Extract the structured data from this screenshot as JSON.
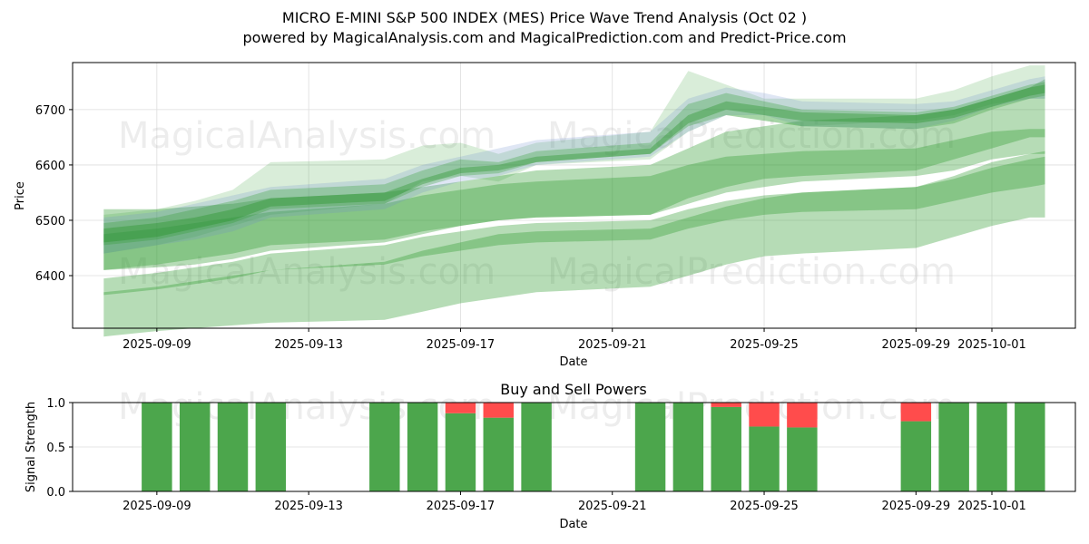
{
  "header": {
    "title": "MICRO E-MINI S&P 500 INDEX (MES) Price Wave Trend Analysis (Oct 02 )",
    "subtitle": "powered by MagicalAnalysis.com and MagicalPrediction.com and Predict-Price.com"
  },
  "watermarks": [
    "MagicalAnalysis.com",
    "MagicalPrediction.com"
  ],
  "chart_data": [
    {
      "type": "area",
      "title": "",
      "xlabel": "Date",
      "ylabel": "Price",
      "x_start_date": "2025-09-09",
      "xlim_days": [
        -2.22,
        24.2
      ],
      "ylim": [
        6305,
        6785
      ],
      "grid": true,
      "x_ticks": [
        {
          "day": 0,
          "label": "2025-09-09"
        },
        {
          "day": 4,
          "label": "2025-09-13"
        },
        {
          "day": 8,
          "label": "2025-09-17"
        },
        {
          "day": 12,
          "label": "2025-09-21"
        },
        {
          "day": 16,
          "label": "2025-09-25"
        },
        {
          "day": 20,
          "label": "2025-09-29"
        },
        {
          "day": 22,
          "label": "2025-10-01"
        }
      ],
      "y_ticks": [
        6400,
        6500,
        6600,
        6700
      ],
      "x_days": [
        -1.4,
        0,
        1,
        2,
        3,
        6,
        7,
        8,
        9,
        10,
        13,
        14,
        15,
        16,
        17,
        20,
        21,
        22,
        23,
        23.4
      ],
      "bands": [
        {
          "name": "wave-band-low-outer",
          "color": "#2e9b2e",
          "opacity": 0.35,
          "upper": [
            6370,
            6380,
            6390,
            6400,
            6410,
            6425,
            6445,
            6460,
            6475,
            6480,
            6485,
            6505,
            6525,
            6540,
            6550,
            6560,
            6580,
            6605,
            6620,
            6625
          ],
          "lower": [
            6290,
            6300,
            6305,
            6310,
            6315,
            6320,
            6335,
            6350,
            6360,
            6370,
            6380,
            6400,
            6420,
            6435,
            6440,
            6450,
            6470,
            6490,
            6505,
            6505
          ]
        },
        {
          "name": "wave-band-low-inner",
          "color": "#2e9b2e",
          "opacity": 0.35,
          "upper": [
            6395,
            6405,
            6415,
            6425,
            6440,
            6455,
            6470,
            6480,
            6490,
            6495,
            6500,
            6520,
            6535,
            6545,
            6550,
            6560,
            6575,
            6595,
            6610,
            6615
          ],
          "lower": [
            6365,
            6375,
            6385,
            6395,
            6410,
            6420,
            6435,
            6445,
            6455,
            6460,
            6465,
            6485,
            6500,
            6510,
            6515,
            6520,
            6535,
            6550,
            6560,
            6565
          ]
        },
        {
          "name": "wave-band-mid-outer",
          "color": "#2e9b2e",
          "opacity": 0.35,
          "upper": [
            6520,
            6520,
            6525,
            6530,
            6540,
            6550,
            6560,
            6570,
            6580,
            6590,
            6600,
            6630,
            6660,
            6670,
            6680,
            6690,
            6700,
            6720,
            6740,
            6755
          ],
          "lower": [
            6410,
            6415,
            6420,
            6430,
            6445,
            6460,
            6475,
            6490,
            6500,
            6505,
            6510,
            6540,
            6560,
            6575,
            6580,
            6590,
            6610,
            6630,
            6650,
            6650
          ]
        },
        {
          "name": "wave-band-mid-inner",
          "color": "#2e9b2e",
          "opacity": 0.35,
          "upper": [
            6475,
            6485,
            6495,
            6505,
            6515,
            6530,
            6545,
            6555,
            6565,
            6570,
            6580,
            6600,
            6615,
            6620,
            6625,
            6630,
            6645,
            6660,
            6665,
            6665
          ],
          "lower": [
            6410,
            6420,
            6430,
            6440,
            6455,
            6465,
            6480,
            6490,
            6500,
            6505,
            6510,
            6530,
            6550,
            6560,
            6570,
            6580,
            6590,
            6610,
            6620,
            6620
          ]
        },
        {
          "name": "wave-band-top-1",
          "color": "#2e9b2e",
          "opacity": 0.18,
          "upper": [
            6510,
            6520,
            6535,
            6555,
            6605,
            6610,
            6635,
            6640,
            6620,
            6640,
            6660,
            6770,
            6745,
            6720,
            6720,
            6720,
            6735,
            6760,
            6780,
            6780
          ],
          "lower": [
            6440,
            6455,
            6470,
            6490,
            6510,
            6530,
            6570,
            6580,
            6570,
            6600,
            6610,
            6660,
            6690,
            6680,
            6670,
            6680,
            6690,
            6710,
            6720,
            6720
          ]
        },
        {
          "name": "wave-band-top-2",
          "color": "#6f8fcf",
          "opacity": 0.22,
          "upper": [
            6505,
            6515,
            6530,
            6545,
            6560,
            6575,
            6600,
            6615,
            6630,
            6645,
            6660,
            6720,
            6740,
            6730,
            6715,
            6710,
            6715,
            6735,
            6755,
            6760
          ],
          "lower": [
            6440,
            6455,
            6465,
            6480,
            6505,
            6520,
            6550,
            6570,
            6580,
            6600,
            6615,
            6660,
            6690,
            6690,
            6670,
            6665,
            6680,
            6705,
            6720,
            6720
          ]
        },
        {
          "name": "wave-band-top-3",
          "color": "#2e9b2e",
          "opacity": 0.3,
          "upper": [
            6495,
            6505,
            6520,
            6535,
            6555,
            6565,
            6590,
            6610,
            6605,
            6625,
            6640,
            6710,
            6730,
            6715,
            6700,
            6695,
            6705,
            6725,
            6745,
            6750
          ],
          "lower": [
            6455,
            6465,
            6480,
            6495,
            6520,
            6530,
            6560,
            6580,
            6585,
            6605,
            6620,
            6670,
            6690,
            6680,
            6670,
            6665,
            6675,
            6700,
            6720,
            6725
          ]
        },
        {
          "name": "wave-band-top-4",
          "color": "#1f8f1f",
          "opacity": 0.35,
          "upper": [
            6485,
            6495,
            6505,
            6520,
            6540,
            6550,
            6575,
            6595,
            6600,
            6615,
            6630,
            6690,
            6715,
            6705,
            6695,
            6690,
            6700,
            6720,
            6740,
            6745
          ],
          "lower": [
            6460,
            6470,
            6485,
            6500,
            6525,
            6535,
            6565,
            6585,
            6590,
            6605,
            6620,
            6675,
            6700,
            6690,
            6680,
            6675,
            6685,
            6705,
            6725,
            6730
          ]
        }
      ]
    },
    {
      "type": "bar",
      "title": "Buy and Sell Powers",
      "xlabel": "Date",
      "ylabel": "Signal Strength",
      "ylim": [
        0,
        1
      ],
      "y_ticks": [
        0.0,
        0.5,
        1.0
      ],
      "y_tick_labels": [
        "0.0",
        "0.5",
        "1.0"
      ],
      "grid": true,
      "x_ticks": [
        {
          "day": 0,
          "label": "2025-09-09"
        },
        {
          "day": 4,
          "label": "2025-09-13"
        },
        {
          "day": 8,
          "label": "2025-09-17"
        },
        {
          "day": 12,
          "label": "2025-09-21"
        },
        {
          "day": 16,
          "label": "2025-09-25"
        },
        {
          "day": 20,
          "label": "2025-09-29"
        },
        {
          "day": 22,
          "label": "2025-10-01"
        }
      ],
      "categories": [
        "2025-09-09",
        "2025-09-10",
        "2025-09-11",
        "2025-09-12",
        "2025-09-15",
        "2025-09-16",
        "2025-09-17",
        "2025-09-18",
        "2025-09-19",
        "2025-09-22",
        "2025-09-23",
        "2025-09-24",
        "2025-09-25",
        "2025-09-26",
        "2025-09-29",
        "2025-09-30",
        "2025-10-01",
        "2025-10-02"
      ],
      "x_days": [
        0,
        1,
        2,
        3,
        6,
        7,
        8,
        9,
        10,
        13,
        14,
        15,
        16,
        17,
        20,
        21,
        22,
        23
      ],
      "series": [
        {
          "name": "Buy",
          "color": "#4ca64c",
          "values": [
            1.0,
            1.0,
            1.0,
            1.0,
            1.0,
            1.0,
            0.88,
            0.83,
            1.0,
            1.0,
            1.0,
            0.95,
            0.73,
            0.72,
            0.79,
            1.0,
            1.0,
            1.0
          ]
        },
        {
          "name": "Sell",
          "color": "#ff4c4c",
          "values": [
            0.0,
            0.0,
            0.0,
            0.0,
            0.0,
            0.0,
            0.12,
            0.17,
            0.0,
            0.0,
            0.0,
            0.05,
            0.27,
            0.28,
            0.21,
            0.0,
            0.0,
            0.0
          ]
        }
      ]
    }
  ]
}
